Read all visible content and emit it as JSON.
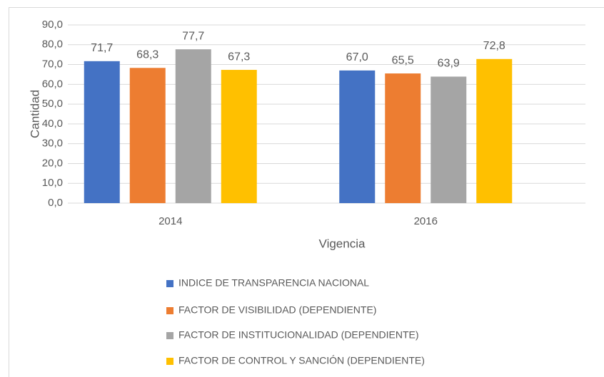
{
  "chart_data": {
    "type": "bar",
    "x_label": "Vigencia",
    "y_label": "Cantidad",
    "categories": [
      "2014",
      "2016"
    ],
    "series": [
      {
        "name": "INDICE DE TRANSPARENCIA NACIONAL",
        "color": "#4472c4",
        "values": [
          71.7,
          67.0
        ],
        "value_labels": [
          "71,7",
          "67,0"
        ]
      },
      {
        "name": "FACTOR DE VISIBILIDAD (DEPENDIENTE)",
        "color": "#ed7d31",
        "values": [
          68.3,
          65.5
        ],
        "value_labels": [
          "68,3",
          "65,5"
        ]
      },
      {
        "name": "FACTOR DE INSTITUCIONALIDAD (DEPENDIENTE)",
        "color": "#a5a5a5",
        "values": [
          77.7,
          63.9
        ],
        "value_labels": [
          "77,7",
          "63,9"
        ]
      },
      {
        "name": "FACTOR DE CONTROL Y SANCIÓN (DEPENDIENTE)",
        "color": "#ffc000",
        "values": [
          67.3,
          72.8
        ],
        "value_labels": [
          "67,3",
          "72,8"
        ]
      }
    ],
    "ylim": [
      0,
      90
    ],
    "yticks": [
      {
        "value": 0,
        "label": "0,0"
      },
      {
        "value": 10,
        "label": "10,0"
      },
      {
        "value": 20,
        "label": "20,0"
      },
      {
        "value": 30,
        "label": "30,0"
      },
      {
        "value": 40,
        "label": "40,0"
      },
      {
        "value": 50,
        "label": "50,0"
      },
      {
        "value": 60,
        "label": "60,0"
      },
      {
        "value": 70,
        "label": "70,0"
      },
      {
        "value": 80,
        "label": "80,0"
      },
      {
        "value": 90,
        "label": "90,0"
      }
    ],
    "grid": true,
    "legend": "bottom"
  }
}
